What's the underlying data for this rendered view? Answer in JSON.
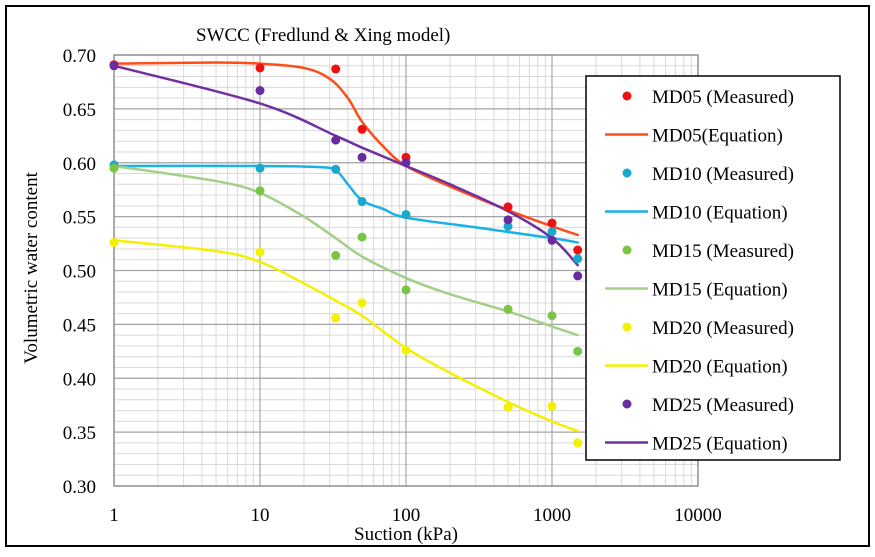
{
  "chart_data": {
    "type": "scatter",
    "title": "SWCC (Fredlund & Xing model)",
    "xlabel": "Suction (kPa)",
    "ylabel": "Volumetric water content",
    "xscale": "log",
    "xlim": [
      1,
      10000
    ],
    "ylim": [
      0.3,
      0.7
    ],
    "x_ticks": [
      "1",
      "10",
      "100",
      "1000",
      "10000"
    ],
    "y_ticks": [
      "0.30",
      "0.35",
      "0.40",
      "0.45",
      "0.50",
      "0.55",
      "0.60",
      "0.65",
      "0.70"
    ],
    "grid": true,
    "legend_position": "right",
    "series": [
      {
        "name": "MD05 (Measured)",
        "kind": "markers",
        "color": "#ee1111",
        "points": [
          [
            1,
            0.691
          ],
          [
            10,
            0.688
          ],
          [
            33,
            0.687
          ],
          [
            50,
            0.631
          ],
          [
            100,
            0.605
          ],
          [
            500,
            0.559
          ],
          [
            1000,
            0.544
          ],
          [
            1500,
            0.519
          ]
        ]
      },
      {
        "name": "MD05(Equation)",
        "kind": "line",
        "color": "#ff4d1a",
        "points": [
          [
            1,
            0.692
          ],
          [
            5,
            0.693
          ],
          [
            10,
            0.692
          ],
          [
            20,
            0.688
          ],
          [
            30,
            0.678
          ],
          [
            40,
            0.66
          ],
          [
            50,
            0.638
          ],
          [
            70,
            0.615
          ],
          [
            100,
            0.597
          ],
          [
            200,
            0.578
          ],
          [
            500,
            0.556
          ],
          [
            1000,
            0.541
          ],
          [
            1500,
            0.533
          ]
        ]
      },
      {
        "name": "MD10 (Measured)",
        "kind": "markers",
        "color": "#1aa8cc",
        "points": [
          [
            1,
            0.598
          ],
          [
            10,
            0.595
          ],
          [
            33,
            0.594
          ],
          [
            50,
            0.564
          ],
          [
            100,
            0.552
          ],
          [
            500,
            0.541
          ],
          [
            1000,
            0.536
          ],
          [
            1500,
            0.511
          ]
        ]
      },
      {
        "name": "MD10 (Equation)",
        "kind": "line",
        "color": "#1ab0e8",
        "points": [
          [
            1,
            0.597
          ],
          [
            10,
            0.597
          ],
          [
            25,
            0.596
          ],
          [
            33,
            0.593
          ],
          [
            40,
            0.58
          ],
          [
            50,
            0.565
          ],
          [
            70,
            0.557
          ],
          [
            100,
            0.549
          ],
          [
            300,
            0.54
          ],
          [
            1000,
            0.53
          ],
          [
            1500,
            0.526
          ]
        ]
      },
      {
        "name": "MD15 (Measured)",
        "kind": "markers",
        "color": "#7cc443",
        "points": [
          [
            1,
            0.595
          ],
          [
            10,
            0.574
          ],
          [
            33,
            0.514
          ],
          [
            50,
            0.531
          ],
          [
            100,
            0.482
          ],
          [
            500,
            0.464
          ],
          [
            1000,
            0.458
          ],
          [
            1500,
            0.425
          ]
        ]
      },
      {
        "name": "MD15 (Equation)",
        "kind": "line",
        "color": "#a3cf8a",
        "points": [
          [
            1,
            0.597
          ],
          [
            5,
            0.583
          ],
          [
            10,
            0.572
          ],
          [
            20,
            0.55
          ],
          [
            33,
            0.53
          ],
          [
            50,
            0.513
          ],
          [
            100,
            0.493
          ],
          [
            200,
            0.478
          ],
          [
            500,
            0.462
          ],
          [
            1000,
            0.448
          ],
          [
            1500,
            0.44
          ]
        ]
      },
      {
        "name": "MD20 (Measured)",
        "kind": "markers",
        "color": "#f5f000",
        "points": [
          [
            1,
            0.526
          ],
          [
            10,
            0.517
          ],
          [
            33,
            0.456
          ],
          [
            50,
            0.47
          ],
          [
            100,
            0.426
          ],
          [
            500,
            0.373
          ],
          [
            1000,
            0.374
          ],
          [
            1500,
            0.34
          ]
        ]
      },
      {
        "name": "MD20 (Equation)",
        "kind": "line",
        "color": "#f5f000",
        "points": [
          [
            1,
            0.528
          ],
          [
            5,
            0.518
          ],
          [
            10,
            0.508
          ],
          [
            20,
            0.488
          ],
          [
            33,
            0.472
          ],
          [
            50,
            0.458
          ],
          [
            100,
            0.428
          ],
          [
            200,
            0.405
          ],
          [
            500,
            0.378
          ],
          [
            1000,
            0.36
          ],
          [
            1500,
            0.351
          ]
        ]
      },
      {
        "name": "MD25 (Measured)",
        "kind": "markers",
        "color": "#6a2aa0",
        "points": [
          [
            1,
            0.69
          ],
          [
            10,
            0.667
          ],
          [
            33,
            0.621
          ],
          [
            50,
            0.605
          ],
          [
            100,
            0.6
          ],
          [
            500,
            0.547
          ],
          [
            1000,
            0.528
          ],
          [
            1500,
            0.495
          ]
        ]
      },
      {
        "name": "MD25 (Equation)",
        "kind": "line",
        "color": "#7030a0",
        "points": [
          [
            1,
            0.69
          ],
          [
            10,
            0.655
          ],
          [
            33,
            0.625
          ],
          [
            50,
            0.614
          ],
          [
            100,
            0.597
          ],
          [
            200,
            0.58
          ],
          [
            500,
            0.555
          ],
          [
            1000,
            0.53
          ],
          [
            1500,
            0.505
          ]
        ]
      }
    ]
  }
}
